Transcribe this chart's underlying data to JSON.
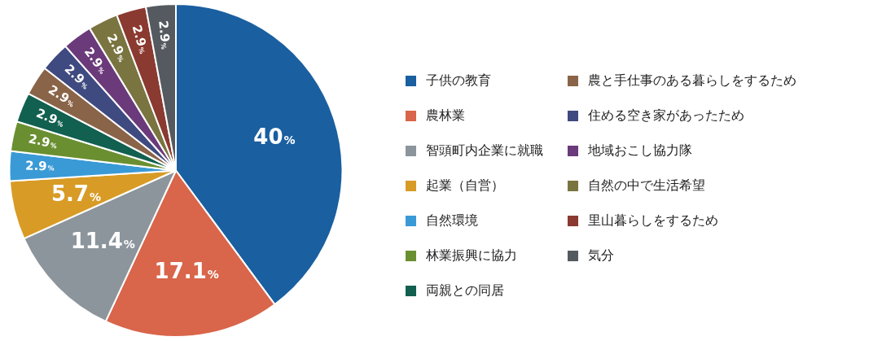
{
  "chart_data": {
    "type": "pie",
    "categories": [
      "子供の教育",
      "農林業",
      "智頭町内企業に就職",
      "起業（自営）",
      "自然環境",
      "林業振興に協力",
      "両親との同居",
      "農と手仕事のある暮らしをするため",
      "住める空き家があったため",
      "地域おこし協力隊",
      "自然の中で生活希望",
      "里山暮らしをするため",
      "気分"
    ],
    "values": [
      40,
      17.1,
      11.4,
      5.7,
      2.9,
      2.9,
      2.9,
      2.9,
      2.9,
      2.9,
      2.9,
      2.9,
      2.9
    ],
    "colors": [
      "#1a5fa0",
      "#d9654a",
      "#8c959c",
      "#d89b26",
      "#3a9ad6",
      "#6a8f30",
      "#12604f",
      "#8a6448",
      "#3f4a80",
      "#6b3a7a",
      "#7a7440",
      "#8a3a30",
      "#545a60"
    ],
    "value_labels": [
      "40%",
      "17.1%",
      "11.4%",
      "5.7%",
      "2.9%",
      "2.9%",
      "2.9%",
      "2.9%",
      "2.9%",
      "2.9%",
      "2.9%",
      "2.9%",
      "2.9%"
    ],
    "legend": "right"
  }
}
